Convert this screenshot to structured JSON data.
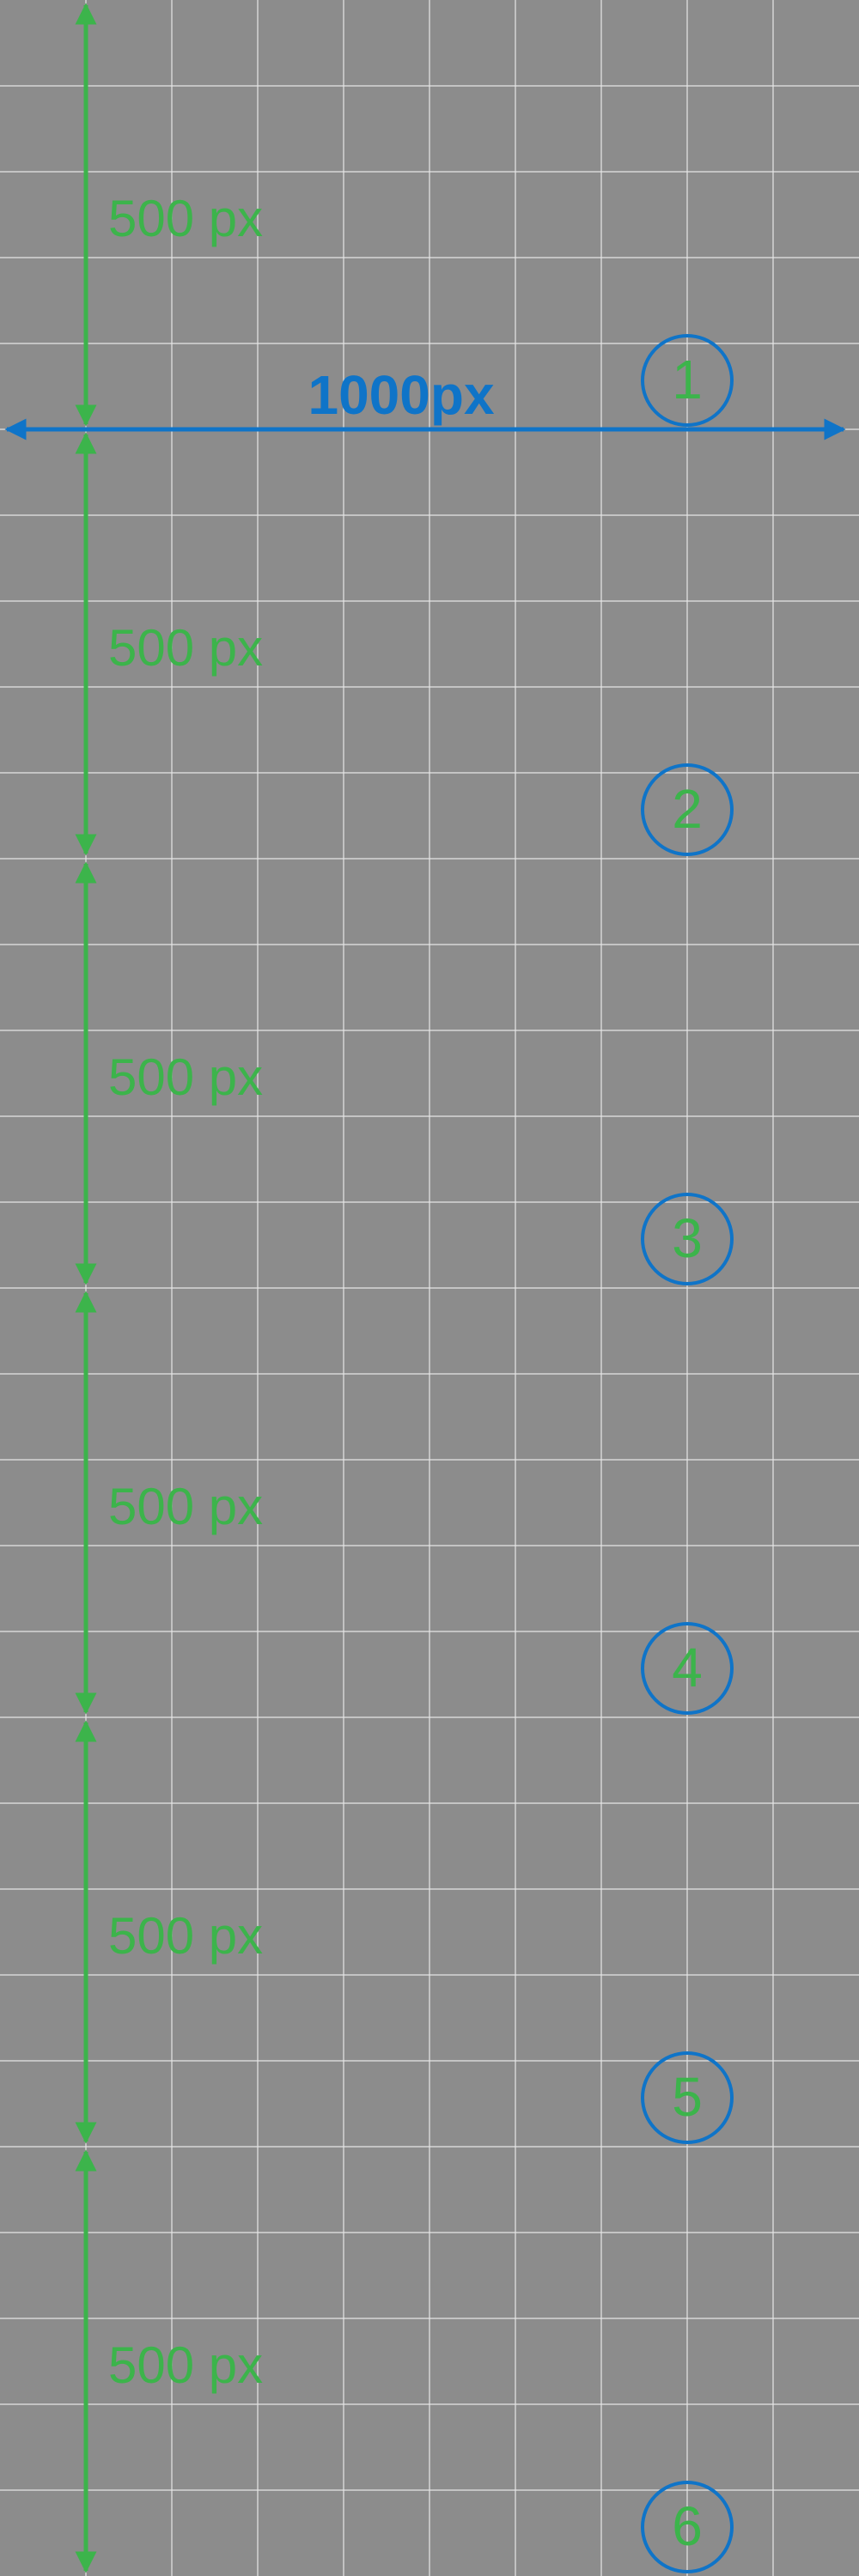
{
  "background_color": "#8c8c8c",
  "grid_line_color": "#e6e6e6",
  "accent_blue": "#0f74c8",
  "accent_green": "#3cb44b",
  "width_label": "1000px",
  "sections": [
    {
      "height_label": "500 px",
      "number": "1"
    },
    {
      "height_label": "500 px",
      "number": "2"
    },
    {
      "height_label": "500 px",
      "number": "3"
    },
    {
      "height_label": "500 px",
      "number": "4"
    },
    {
      "height_label": "500 px",
      "number": "5"
    },
    {
      "height_label": "500 px",
      "number": "6"
    }
  ]
}
